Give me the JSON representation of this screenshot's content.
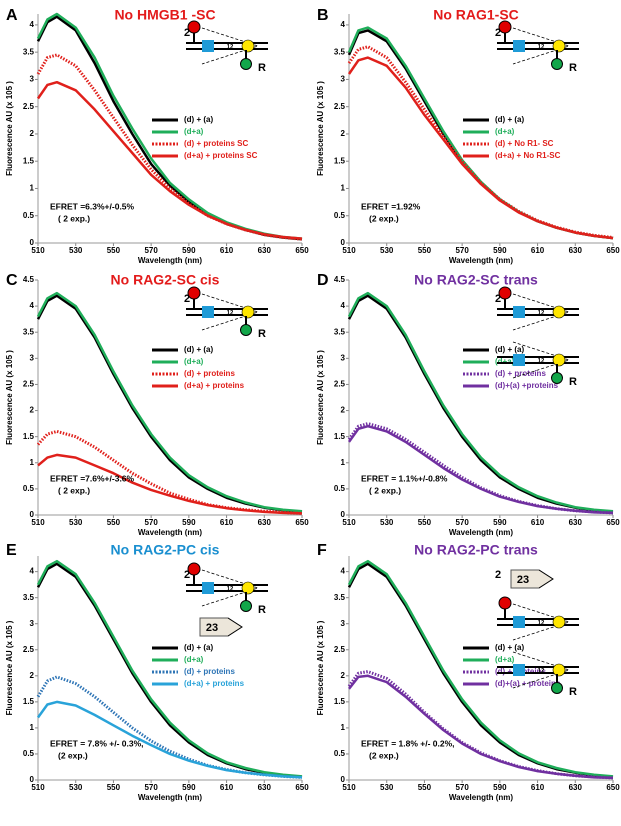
{
  "chart_data": [
    {
      "type": "line",
      "letter": "A",
      "title": "No HMGB1 -SC",
      "title_color": "#e31b1b",
      "xlabel": "Wavelength (nm)",
      "ylabel": "Fluorescence AU (x 105 )",
      "xlim": [
        510,
        650
      ],
      "xticks": [
        510,
        530,
        550,
        570,
        590,
        610,
        630,
        650
      ],
      "ylim": [
        0,
        4.2
      ],
      "yticks": [
        0,
        0.5,
        1,
        1.5,
        2,
        2.5,
        3,
        3.5,
        4
      ],
      "x": [
        510,
        515,
        520,
        530,
        540,
        550,
        560,
        570,
        580,
        590,
        600,
        610,
        620,
        630,
        640,
        650
      ],
      "series": [
        {
          "name": "(d) + (a)",
          "color": "#000000",
          "dashed": false,
          "values": [
            3.7,
            4.05,
            4.15,
            3.9,
            3.3,
            2.6,
            2.0,
            1.45,
            1.05,
            0.75,
            0.52,
            0.35,
            0.24,
            0.15,
            0.1,
            0.07
          ]
        },
        {
          "name": "(d+a)",
          "color": "#1fae5a",
          "dashed": false,
          "values": [
            3.75,
            4.1,
            4.2,
            3.95,
            3.4,
            2.7,
            2.1,
            1.55,
            1.1,
            0.8,
            0.55,
            0.38,
            0.26,
            0.17,
            0.11,
            0.08
          ]
        },
        {
          "name": "(d) + proteins SC",
          "color": "#e0201b",
          "dashed": true,
          "values": [
            3.1,
            3.4,
            3.45,
            3.25,
            2.8,
            2.3,
            1.8,
            1.35,
            1.0,
            0.72,
            0.5,
            0.35,
            0.24,
            0.15,
            0.1,
            0.07
          ]
        },
        {
          "name": "(d+a) + proteins SC",
          "color": "#e0201b",
          "dashed": false,
          "values": [
            2.65,
            2.9,
            2.95,
            2.8,
            2.45,
            2.05,
            1.65,
            1.25,
            0.95,
            0.7,
            0.5,
            0.35,
            0.24,
            0.16,
            0.11,
            0.08
          ]
        }
      ],
      "annotations": [
        "EFRET =6.3%+/-0.5%",
        "( 2 exp.)"
      ],
      "diagram_labels": [
        "2",
        "12",
        "R"
      ]
    },
    {
      "type": "line",
      "letter": "B",
      "title": "No RAG1-SC",
      "title_color": "#e31b1b",
      "xlabel": "Wavelength (nm)",
      "ylabel": "Fluorescence AU (x 105 )",
      "xlim": [
        510,
        650
      ],
      "xticks": [
        510,
        530,
        550,
        570,
        590,
        610,
        630,
        650
      ],
      "ylim": [
        0,
        4.2
      ],
      "yticks": [
        0,
        0.5,
        1,
        1.5,
        2,
        2.5,
        3,
        3.5,
        4
      ],
      "x": [
        510,
        515,
        520,
        530,
        540,
        550,
        560,
        570,
        580,
        590,
        600,
        610,
        620,
        630,
        640,
        650
      ],
      "series": [
        {
          "name": "(d) + (a)",
          "color": "#000000",
          "dashed": false,
          "values": [
            3.45,
            3.85,
            3.9,
            3.7,
            3.2,
            2.6,
            2.0,
            1.5,
            1.1,
            0.8,
            0.57,
            0.4,
            0.28,
            0.19,
            0.13,
            0.09
          ]
        },
        {
          "name": "(d+a)",
          "color": "#1fae5a",
          "dashed": false,
          "values": [
            3.5,
            3.9,
            3.95,
            3.75,
            3.25,
            2.65,
            2.05,
            1.52,
            1.12,
            0.8,
            0.57,
            0.4,
            0.28,
            0.19,
            0.13,
            0.09
          ]
        },
        {
          "name": "(d) + No R1- SC",
          "color": "#e0201b",
          "dashed": true,
          "values": [
            3.3,
            3.55,
            3.6,
            3.4,
            2.95,
            2.45,
            1.95,
            1.5,
            1.1,
            0.8,
            0.58,
            0.41,
            0.29,
            0.2,
            0.14,
            0.1
          ]
        },
        {
          "name": "(d+a) + No R1-SC",
          "color": "#e0201b",
          "dashed": false,
          "values": [
            3.1,
            3.35,
            3.4,
            3.25,
            2.85,
            2.35,
            1.9,
            1.45,
            1.08,
            0.78,
            0.56,
            0.4,
            0.28,
            0.19,
            0.13,
            0.09
          ]
        }
      ],
      "annotations": [
        "EFRET =1.92%",
        "(2 exp.)"
      ],
      "diagram_labels": [
        "2",
        "12",
        "R"
      ]
    },
    {
      "type": "line",
      "letter": "C",
      "title": "No RAG2-SC cis",
      "title_color": "#e31b1b",
      "xlabel": "Wavelength (nm)",
      "ylabel": "Fluorescence AU (x 105 )",
      "xlim": [
        510,
        650
      ],
      "xticks": [
        510,
        530,
        550,
        570,
        590,
        610,
        630,
        650
      ],
      "ylim": [
        0,
        4.5
      ],
      "yticks": [
        0,
        0.5,
        1,
        1.5,
        2,
        2.5,
        3,
        3.5,
        4,
        4.5
      ],
      "x": [
        510,
        515,
        520,
        530,
        540,
        550,
        560,
        570,
        580,
        590,
        600,
        610,
        620,
        630,
        640,
        650
      ],
      "series": [
        {
          "name": "(d) + (a)",
          "color": "#000000",
          "dashed": false,
          "values": [
            3.75,
            4.1,
            4.2,
            3.95,
            3.4,
            2.7,
            2.05,
            1.5,
            1.05,
            0.72,
            0.5,
            0.33,
            0.22,
            0.14,
            0.09,
            0.06
          ]
        },
        {
          "name": "(d+a)",
          "color": "#1fae5a",
          "dashed": false,
          "values": [
            3.8,
            4.15,
            4.25,
            4.0,
            3.45,
            2.75,
            2.1,
            1.55,
            1.1,
            0.76,
            0.53,
            0.36,
            0.24,
            0.15,
            0.1,
            0.07
          ]
        },
        {
          "name": "(d) + proteins",
          "color": "#e0201b",
          "dashed": true,
          "values": [
            1.35,
            1.55,
            1.6,
            1.5,
            1.3,
            1.05,
            0.8,
            0.6,
            0.42,
            0.3,
            0.2,
            0.14,
            0.1,
            0.07,
            0.05,
            0.03
          ]
        },
        {
          "name": "(d+a) + proteins",
          "color": "#e0201b",
          "dashed": false,
          "values": [
            0.95,
            1.1,
            1.15,
            1.1,
            0.95,
            0.8,
            0.62,
            0.48,
            0.37,
            0.27,
            0.19,
            0.13,
            0.09,
            0.06,
            0.04,
            0.03
          ]
        }
      ],
      "annotations": [
        "EFRET =7.6%+/-3.6%",
        "( 2 exp.)"
      ],
      "diagram_labels": [
        "2",
        "12",
        "R"
      ]
    },
    {
      "type": "line",
      "letter": "D",
      "title": "No RAG2-SC trans",
      "title_color": "#7030a0",
      "xlabel": "Wavelength (nm)",
      "ylabel": "Fluorescence AU (x 105 )",
      "xlim": [
        510,
        650
      ],
      "xticks": [
        510,
        530,
        550,
        570,
        590,
        610,
        630,
        650
      ],
      "ylim": [
        0,
        4.5
      ],
      "yticks": [
        0,
        0.5,
        1,
        1.5,
        2,
        2.5,
        3,
        3.5,
        4,
        4.5
      ],
      "x": [
        510,
        515,
        520,
        530,
        540,
        550,
        560,
        570,
        580,
        590,
        600,
        610,
        620,
        630,
        640,
        650
      ],
      "series": [
        {
          "name": "(d) + (a)",
          "color": "#000000",
          "dashed": false,
          "values": [
            3.75,
            4.1,
            4.2,
            3.95,
            3.4,
            2.7,
            2.05,
            1.5,
            1.05,
            0.72,
            0.5,
            0.33,
            0.22,
            0.14,
            0.09,
            0.06
          ]
        },
        {
          "name": "(d+a)",
          "color": "#1fae5a",
          "dashed": false,
          "values": [
            3.8,
            4.15,
            4.25,
            4.0,
            3.45,
            2.75,
            2.1,
            1.55,
            1.1,
            0.76,
            0.53,
            0.36,
            0.24,
            0.15,
            0.1,
            0.07
          ]
        },
        {
          "name": "(d) + proteins",
          "color": "#7030a0",
          "dashed": true,
          "values": [
            1.45,
            1.7,
            1.75,
            1.65,
            1.45,
            1.2,
            0.95,
            0.72,
            0.52,
            0.37,
            0.26,
            0.18,
            0.12,
            0.08,
            0.06,
            0.04
          ]
        },
        {
          "name": "(d)+(a) +proteins",
          "color": "#7030a0",
          "dashed": false,
          "values": [
            1.4,
            1.65,
            1.7,
            1.6,
            1.4,
            1.15,
            0.9,
            0.68,
            0.5,
            0.35,
            0.25,
            0.17,
            0.12,
            0.08,
            0.05,
            0.04
          ]
        }
      ],
      "annotations": [
        "EFRET = 1.1%+/-0.8%",
        "( 2 exp.)"
      ],
      "diagram_labels": [
        "2",
        "12",
        "12",
        "R"
      ]
    },
    {
      "type": "line",
      "letter": "E",
      "title": "No RAG2-PC cis",
      "title_color": "#1a8fd0",
      "xlabel": "Wavelength (nm)",
      "ylabel": "Fluorescence AU (x 105 )",
      "xlim": [
        510,
        650
      ],
      "xticks": [
        510,
        530,
        550,
        570,
        590,
        610,
        630,
        650
      ],
      "ylim": [
        0,
        4.3
      ],
      "yticks": [
        0,
        0.5,
        1,
        1.5,
        2,
        2.5,
        3,
        3.5,
        4
      ],
      "x": [
        510,
        515,
        520,
        530,
        540,
        550,
        560,
        570,
        580,
        590,
        600,
        610,
        620,
        630,
        640,
        650
      ],
      "series": [
        {
          "name": "(d) + (a)",
          "color": "#000000",
          "dashed": false,
          "values": [
            3.7,
            4.05,
            4.15,
            3.9,
            3.35,
            2.7,
            2.05,
            1.5,
            1.05,
            0.72,
            0.48,
            0.32,
            0.21,
            0.14,
            0.09,
            0.06
          ]
        },
        {
          "name": "(d+a)",
          "color": "#1fae5a",
          "dashed": false,
          "values": [
            3.75,
            4.1,
            4.2,
            3.95,
            3.4,
            2.75,
            2.1,
            1.55,
            1.1,
            0.76,
            0.51,
            0.34,
            0.23,
            0.15,
            0.1,
            0.07
          ]
        },
        {
          "name": "(d) + proteins",
          "color": "#2e75b6",
          "dashed": true,
          "values": [
            1.6,
            1.9,
            1.98,
            1.85,
            1.6,
            1.3,
            1.0,
            0.75,
            0.55,
            0.4,
            0.28,
            0.2,
            0.14,
            0.1,
            0.07,
            0.05
          ]
        },
        {
          "name": "(d+a) + proteins",
          "color": "#29a3d9",
          "dashed": false,
          "values": [
            1.2,
            1.45,
            1.5,
            1.43,
            1.25,
            1.05,
            0.85,
            0.67,
            0.5,
            0.37,
            0.27,
            0.19,
            0.14,
            0.1,
            0.07,
            0.05
          ]
        }
      ],
      "annotations": [
        "EFRET = 7.8% +/- 0.3%,",
        "(2 exp.)"
      ],
      "diagram_labels": [
        "2",
        "12",
        "R",
        "23"
      ]
    },
    {
      "type": "line",
      "letter": "F",
      "title": "No RAG2-PC trans",
      "title_color": "#7030a0",
      "xlabel": "Wavelength (nm)",
      "ylabel": "Fluorescence AU (x 105 )",
      "xlim": [
        510,
        650
      ],
      "xticks": [
        510,
        530,
        550,
        570,
        590,
        610,
        630,
        650
      ],
      "ylim": [
        0,
        4.3
      ],
      "yticks": [
        0,
        0.5,
        1,
        1.5,
        2,
        2.5,
        3,
        3.5,
        4
      ],
      "x": [
        510,
        515,
        520,
        530,
        540,
        550,
        560,
        570,
        580,
        590,
        600,
        610,
        620,
        630,
        640,
        650
      ],
      "series": [
        {
          "name": "(d) + (a)",
          "color": "#000000",
          "dashed": false,
          "values": [
            3.7,
            4.05,
            4.15,
            3.9,
            3.35,
            2.7,
            2.05,
            1.5,
            1.05,
            0.72,
            0.48,
            0.32,
            0.21,
            0.14,
            0.09,
            0.06
          ]
        },
        {
          "name": "(d+a)",
          "color": "#1fae5a",
          "dashed": false,
          "values": [
            3.75,
            4.1,
            4.2,
            3.95,
            3.4,
            2.75,
            2.1,
            1.55,
            1.1,
            0.76,
            0.51,
            0.34,
            0.23,
            0.15,
            0.1,
            0.07
          ]
        },
        {
          "name": "(d) + proteins",
          "color": "#7030a0",
          "dashed": true,
          "values": [
            1.8,
            2.05,
            2.08,
            1.95,
            1.65,
            1.3,
            0.98,
            0.72,
            0.52,
            0.37,
            0.26,
            0.18,
            0.12,
            0.08,
            0.06,
            0.04
          ]
        },
        {
          "name": "(d)+(a) + proteins",
          "color": "#7030a0",
          "dashed": false,
          "values": [
            1.75,
            1.98,
            2.0,
            1.88,
            1.6,
            1.27,
            0.96,
            0.7,
            0.5,
            0.36,
            0.25,
            0.17,
            0.12,
            0.08,
            0.05,
            0.04
          ]
        }
      ],
      "annotations": [
        "EFRET = 1.8% +/- 0.2%,",
        "(2 exp.)"
      ],
      "diagram_labels": [
        "2",
        "23",
        "12",
        "12",
        "R"
      ]
    }
  ]
}
